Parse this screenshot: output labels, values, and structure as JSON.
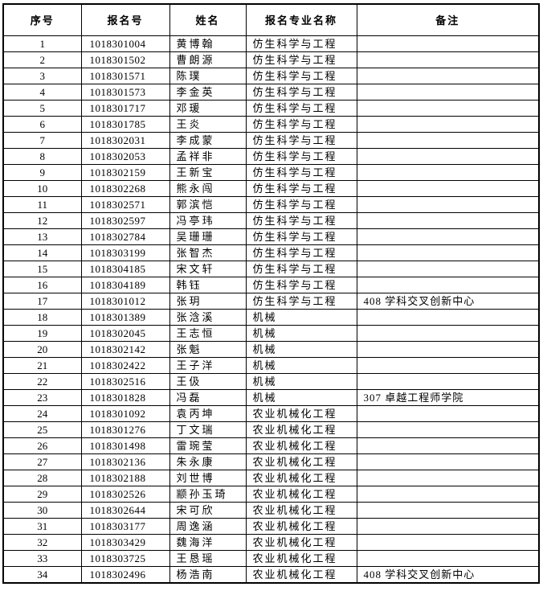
{
  "table": {
    "headers": [
      "序号",
      "报名号",
      "姓名",
      "报名专业名称",
      "备注"
    ],
    "rows": [
      [
        "1",
        "1018301004",
        "黄博翰",
        "仿生科学与工程",
        ""
      ],
      [
        "2",
        "1018301502",
        "曹朗源",
        "仿生科学与工程",
        ""
      ],
      [
        "3",
        "1018301571",
        "陈璞",
        "仿生科学与工程",
        ""
      ],
      [
        "4",
        "1018301573",
        "李金英",
        "仿生科学与工程",
        ""
      ],
      [
        "5",
        "1018301717",
        "邓瑗",
        "仿生科学与工程",
        ""
      ],
      [
        "6",
        "1018301785",
        "王炎",
        "仿生科学与工程",
        ""
      ],
      [
        "7",
        "1018302031",
        "李成蒙",
        "仿生科学与工程",
        ""
      ],
      [
        "8",
        "1018302053",
        "孟祥非",
        "仿生科学与工程",
        ""
      ],
      [
        "9",
        "1018302159",
        "王新宝",
        "仿生科学与工程",
        ""
      ],
      [
        "10",
        "1018302268",
        "熊永闯",
        "仿生科学与工程",
        ""
      ],
      [
        "11",
        "1018302571",
        "郭滨恺",
        "仿生科学与工程",
        ""
      ],
      [
        "12",
        "1018302597",
        "冯亭玮",
        "仿生科学与工程",
        ""
      ],
      [
        "13",
        "1018302784",
        "吴珊珊",
        "仿生科学与工程",
        ""
      ],
      [
        "14",
        "1018303199",
        "张智杰",
        "仿生科学与工程",
        ""
      ],
      [
        "15",
        "1018304185",
        "宋文轩",
        "仿生科学与工程",
        ""
      ],
      [
        "16",
        "1018304189",
        "韩钰",
        "仿生科学与工程",
        ""
      ],
      [
        "17",
        "1018301012",
        "张玥",
        "仿生科学与工程",
        "408 学科交叉创新中心"
      ],
      [
        "18",
        "1018301389",
        "张浛溪",
        "机械",
        ""
      ],
      [
        "19",
        "1018302045",
        "王志恒",
        "机械",
        ""
      ],
      [
        "20",
        "1018302142",
        "张魁",
        "机械",
        ""
      ],
      [
        "21",
        "1018302422",
        "王子洋",
        "机械",
        ""
      ],
      [
        "22",
        "1018302516",
        "王伋",
        "机械",
        ""
      ],
      [
        "23",
        "1018301828",
        "冯磊",
        "机械",
        "307 卓越工程师学院"
      ],
      [
        "24",
        "1018301092",
        "袁丙坤",
        "农业机械化工程",
        ""
      ],
      [
        "25",
        "1018301276",
        "丁文瑞",
        "农业机械化工程",
        ""
      ],
      [
        "26",
        "1018301498",
        "雷琬莹",
        "农业机械化工程",
        ""
      ],
      [
        "27",
        "1018302136",
        "朱永康",
        "农业机械化工程",
        ""
      ],
      [
        "28",
        "1018302188",
        "刘世博",
        "农业机械化工程",
        ""
      ],
      [
        "29",
        "1018302526",
        "颛孙玉琦",
        "农业机械化工程",
        ""
      ],
      [
        "30",
        "1018302644",
        "宋可欣",
        "农业机械化工程",
        ""
      ],
      [
        "31",
        "1018303177",
        "周逸涵",
        "农业机械化工程",
        ""
      ],
      [
        "32",
        "1018303429",
        "魏海洋",
        "农业机械化工程",
        ""
      ],
      [
        "33",
        "1018303725",
        "王恳瑶",
        "农业机械化工程",
        ""
      ],
      [
        "34",
        "1018302496",
        "杨浩南",
        "农业机械化工程",
        "408 学科交叉创新中心"
      ]
    ]
  }
}
